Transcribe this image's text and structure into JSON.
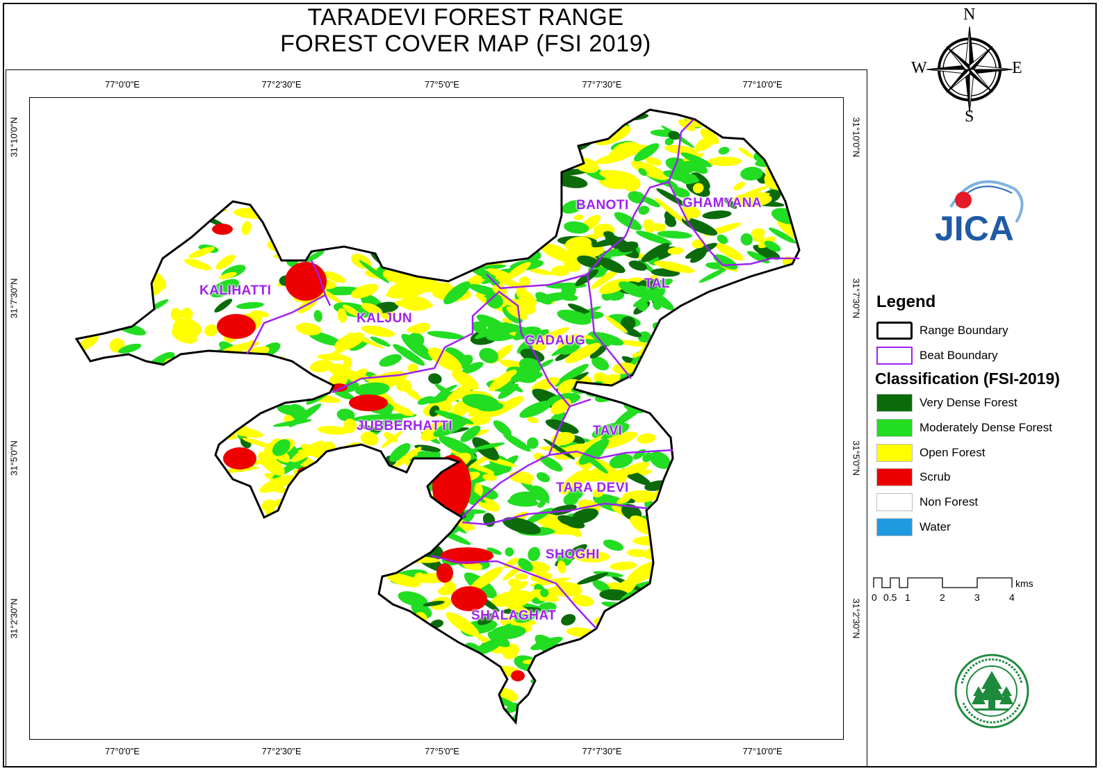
{
  "title": {
    "line1": "TARADEVI FOREST RANGE",
    "line2": "FOREST COVER MAP (FSI 2019)"
  },
  "graticule": {
    "longitudes": [
      "77°0'0\"E",
      "77°2'30\"E",
      "77°5'0\"E",
      "77°7'30\"E",
      "77°10'0\"E"
    ],
    "latitudes": [
      "31°10'0\"N",
      "31°7'30\"N",
      "31°5'0\"N",
      "31°2'30\"N"
    ]
  },
  "beats": [
    {
      "id": "kalihatti",
      "label": "KALIHATTI"
    },
    {
      "id": "kaljun",
      "label": "KALJUN"
    },
    {
      "id": "banoti",
      "label": "BANOTI"
    },
    {
      "id": "ghamyana",
      "label": "GHAMYANA"
    },
    {
      "id": "tal",
      "label": "TAL"
    },
    {
      "id": "gadaug",
      "label": "GADAUG"
    },
    {
      "id": "jubberhatti",
      "label": "JUBBERHATTI"
    },
    {
      "id": "tavi",
      "label": "TAVI"
    },
    {
      "id": "tara-devi",
      "label": "TARA DEVI"
    },
    {
      "id": "shoghi",
      "label": "SHOGHI"
    },
    {
      "id": "shalaghat",
      "label": "SHALAGHAT"
    }
  ],
  "compass": {
    "n": "N",
    "s": "S",
    "e": "E",
    "w": "W"
  },
  "legend": {
    "title": "Legend",
    "boundaries": [
      {
        "label": "Range Boundary",
        "color": "#000000"
      },
      {
        "label": "Beat Boundary",
        "color": "#a020f0"
      }
    ],
    "classification_title": "Classification (FSI-2019)",
    "classes": [
      {
        "label": "Very Dense Forest",
        "color": "#0b6b0b"
      },
      {
        "label": "Moderately Dense Forest",
        "color": "#22dd22"
      },
      {
        "label": "Open Forest",
        "color": "#ffff00"
      },
      {
        "label": "Scrub",
        "color": "#ee0000"
      },
      {
        "label": "Non Forest",
        "color": "#ffffff"
      },
      {
        "label": "Water",
        "color": "#1e9be0"
      }
    ]
  },
  "scale_bar": {
    "ticks": [
      "0",
      "0.5",
      "1",
      "2",
      "3",
      "4"
    ],
    "unit": "kms"
  },
  "logos": {
    "jica_text": "JICA"
  }
}
